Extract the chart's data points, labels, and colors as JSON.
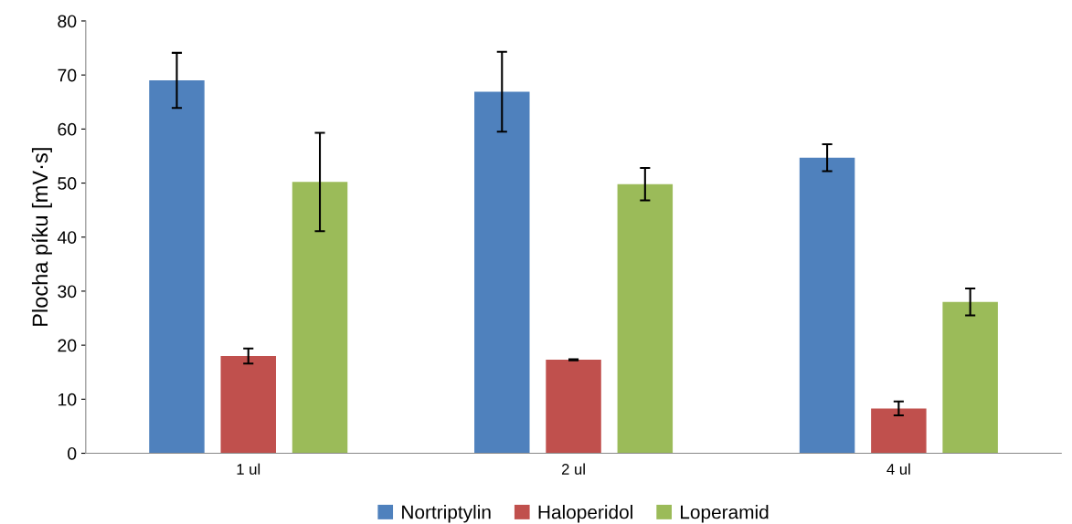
{
  "chart_data": {
    "type": "bar",
    "ylabel": "Plocha píku [mV·s]",
    "categories": [
      "1 ul",
      "2 ul",
      "4 ul"
    ],
    "series": [
      {
        "name": "Nortriptylin",
        "color": "#4f81bd",
        "values": [
          69.0,
          66.9,
          54.7
        ],
        "errors": [
          5.1,
          7.4,
          2.5
        ]
      },
      {
        "name": "Haloperidol",
        "color": "#c0504d",
        "values": [
          18.0,
          17.3,
          8.3
        ],
        "errors": [
          1.4,
          0.1,
          1.3
        ]
      },
      {
        "name": "Loperamid",
        "color": "#9bbb59",
        "values": [
          50.2,
          49.8,
          28.0
        ],
        "errors": [
          9.1,
          3.0,
          2.5
        ]
      }
    ],
    "ylim": [
      0,
      80
    ],
    "yticks": [
      0,
      10,
      20,
      30,
      40,
      50,
      60,
      70,
      80
    ],
    "grid": false,
    "legend": "bottom"
  }
}
